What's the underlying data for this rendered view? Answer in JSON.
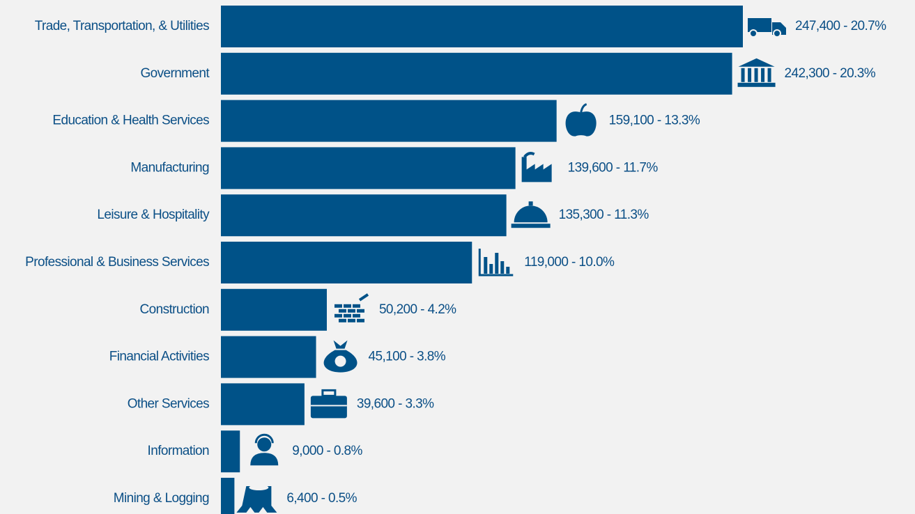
{
  "chart_data": {
    "type": "bar",
    "orientation": "horizontal",
    "color": "#005288",
    "categories": [
      "Trade, Transportation, & Utilities",
      "Government",
      "Education & Health Services",
      "Manufacturing",
      "Leisure & Hospitality",
      "Professional & Business Services",
      "Construction",
      "Financial Activities",
      "Other Services",
      "Information",
      "Mining & Logging"
    ],
    "values": [
      247400,
      242300,
      159100,
      139600,
      135300,
      119000,
      50200,
      45100,
      39600,
      9000,
      6400
    ],
    "value_labels": [
      "247,400 - 20.7%",
      "242,300 - 20.3%",
      "159,100 - 13.3%",
      "139,600 - 11.7%",
      "135,300 - 11.3%",
      "119,000 - 10.0%",
      "50,200 - 4.2%",
      "45,100 - 3.8%",
      "39,600 - 3.3%",
      "9,000 - 0.8%",
      "6,400 - 0.5%"
    ]
  }
}
